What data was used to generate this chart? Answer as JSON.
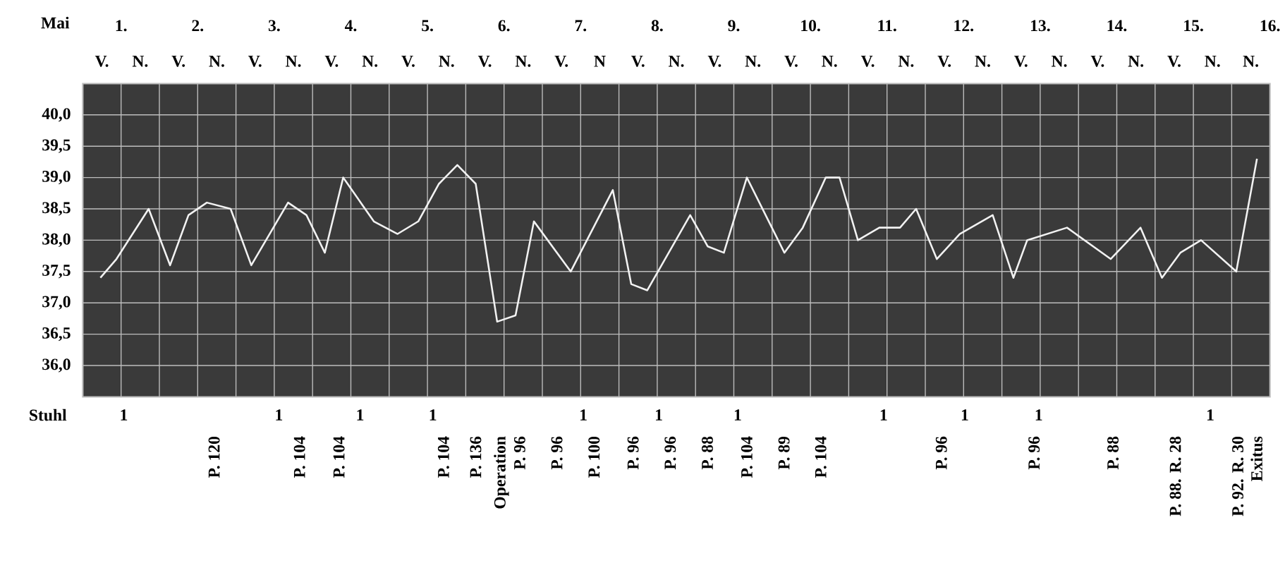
{
  "chart_data": {
    "type": "line",
    "xlabel": "Mai",
    "xlim": [
      0.5,
      16
    ],
    "ylim": [
      35.5,
      40.5
    ],
    "xticks": [
      {
        "value": 0.5,
        "label": null
      },
      {
        "value": 1,
        "label": "1."
      },
      {
        "value": 1.5,
        "label": null
      },
      {
        "value": 2,
        "label": "2."
      },
      {
        "value": 2.5,
        "label": null
      },
      {
        "value": 3,
        "label": "3."
      },
      {
        "value": 3.5,
        "label": null
      },
      {
        "value": 4,
        "label": "4."
      },
      {
        "value": 4.5,
        "label": null
      },
      {
        "value": 5,
        "label": "5."
      },
      {
        "value": 5.5,
        "label": null
      },
      {
        "value": 6,
        "label": "6."
      },
      {
        "value": 6.5,
        "label": null
      },
      {
        "value": 7,
        "label": "7."
      },
      {
        "value": 7.5,
        "label": null
      },
      {
        "value": 8,
        "label": "8."
      },
      {
        "value": 8.5,
        "label": null
      },
      {
        "value": 9,
        "label": "9."
      },
      {
        "value": 9.5,
        "label": null
      },
      {
        "value": 10,
        "label": "10."
      },
      {
        "value": 10.5,
        "label": null
      },
      {
        "value": 11,
        "label": "11."
      },
      {
        "value": 11.5,
        "label": null
      },
      {
        "value": 12,
        "label": "12."
      },
      {
        "value": 12.5,
        "label": null
      },
      {
        "value": 13,
        "label": "13."
      },
      {
        "value": 13.5,
        "label": null
      },
      {
        "value": 14,
        "label": "14."
      },
      {
        "value": 14.5,
        "label": null
      },
      {
        "value": 15,
        "label": "15."
      },
      {
        "value": 15.5,
        "label": null
      },
      {
        "value": 16,
        "label": "16."
      }
    ],
    "yticks": [
      {
        "value": 36,
        "label": "36,0"
      },
      {
        "value": 36.5,
        "label": "36,5"
      },
      {
        "value": 37,
        "label": "37,0"
      },
      {
        "value": 37.5,
        "label": "37,5"
      },
      {
        "value": 38,
        "label": "38,0"
      },
      {
        "value": 38.5,
        "label": "38,5"
      },
      {
        "value": 39,
        "label": "39,0"
      },
      {
        "value": 39.5,
        "label": "39,5"
      },
      {
        "value": 40,
        "label": "40,0"
      }
    ],
    "grid": true,
    "series": [
      {
        "color": "#f2f2f2",
        "x": [
          0.73,
          0.94,
          1.36,
          1.64,
          1.88,
          2.12,
          2.43,
          2.7,
          3.18,
          3.42,
          3.66,
          3.9,
          4.3,
          4.61,
          4.88,
          5.15,
          5.39,
          5.63,
          5.91,
          6.15,
          6.39,
          6.87,
          7.42,
          7.66,
          7.87,
          8.43,
          8.66,
          8.87,
          9.17,
          9.66,
          9.9,
          10.2,
          10.38,
          10.62,
          10.9,
          11.17,
          11.38,
          11.65,
          11.95,
          12.38,
          12.65,
          12.83,
          13.35,
          13.92,
          14.31,
          14.59,
          14.83,
          15.1,
          15.56,
          15.83
        ],
        "values": [
          37.4,
          37.7,
          38.5,
          37.6,
          38.4,
          38.6,
          38.5,
          37.6,
          38.6,
          38.4,
          37.8,
          39.0,
          38.3,
          38.1,
          38.3,
          38.9,
          39.2,
          38.9,
          36.7,
          36.8,
          38.3,
          37.5,
          38.8,
          37.3,
          37.2,
          38.4,
          37.9,
          37.8,
          39.0,
          37.8,
          38.2,
          39.0,
          39.0,
          38.0,
          38.2,
          38.2,
          38.5,
          37.7,
          38.1,
          38.4,
          37.4,
          38.0,
          38.2,
          37.7,
          38.2,
          37.4,
          37.8,
          38.0,
          37.5,
          39.3
        ]
      }
    ],
    "annotations": [
      "V.",
      "N.",
      "V.",
      "N.",
      "V.",
      "N.",
      "V.",
      "N.",
      "V.",
      "N.",
      "V.",
      "N.",
      "V.",
      "N",
      "V.",
      "N.",
      "V.",
      "N.",
      "V.",
      "N.",
      "V.",
      "N.",
      "V.",
      "N.",
      "V.",
      "N.",
      "V.",
      "N.",
      "V.",
      "N.",
      "N.",
      "Stuhl",
      "1",
      "1",
      "1",
      "1",
      "1",
      "1",
      "1",
      "1",
      "1",
      "1",
      "1",
      "P. 120",
      "P. 104",
      "P. 104",
      "P. 104",
      "P. 136",
      "Operation",
      "P. 96",
      "P. 96",
      "P. 100",
      "P. 96",
      "P. 96",
      "P. 88",
      "P. 104",
      "P. 89",
      "P. 104",
      "P. 96",
      "P. 96",
      "P. 88",
      "P. 88. R. 28",
      "P. 92. R. 30",
      "Exitus"
    ]
  }
}
